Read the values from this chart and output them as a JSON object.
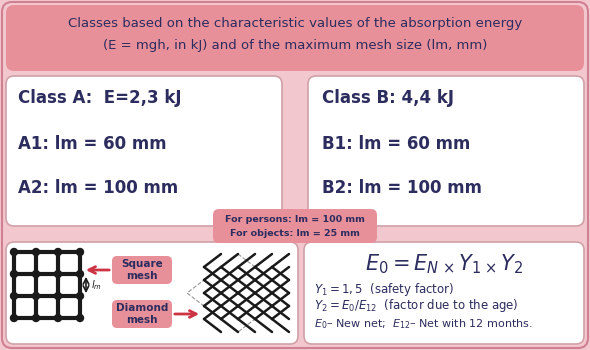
{
  "bg_color": "#f2c8ce",
  "fig_bg": "#f2c8ce",
  "title_text_line1": "Classes based on the characteristic values of the absorption energy",
  "title_text_line2": "(E = mgh, in kJ) and of the maximum mesh size (lm, mm)",
  "title_box_color": "#e8909a",
  "title_text_color": "#2c2c5e",
  "class_a_title": "Class A:  E=2,3 kJ",
  "class_a_line1": "A1: lm = 60 mm",
  "class_a_line2": "A2: lm = 100 mm",
  "class_b_title": "Class B: 4,4 kJ",
  "class_b_line1": "B1: lm = 60 mm",
  "class_b_line2": "B2: lm = 100 mm",
  "class_box_color": "#ffffff",
  "class_border_color": "#d0a0a8",
  "class_text_color": "#2c2c5e",
  "mid_box_text1": "For persons: lm = 100 mm",
  "mid_box_text2": "For objects: lm = 25 mm",
  "mid_box_color": "#e8909a",
  "mid_box_text_color": "#2c2c5e",
  "bottom_left_box_color": "#ffffff",
  "bottom_right_box_color": "#ffffff",
  "square_mesh_label": "Square\nmesh",
  "diamond_mesh_label": "Diamond\nmesh",
  "formula_text_color": "#2c2c5e",
  "arrow_color": "#cc3344",
  "mesh_color": "#1a1a1a"
}
